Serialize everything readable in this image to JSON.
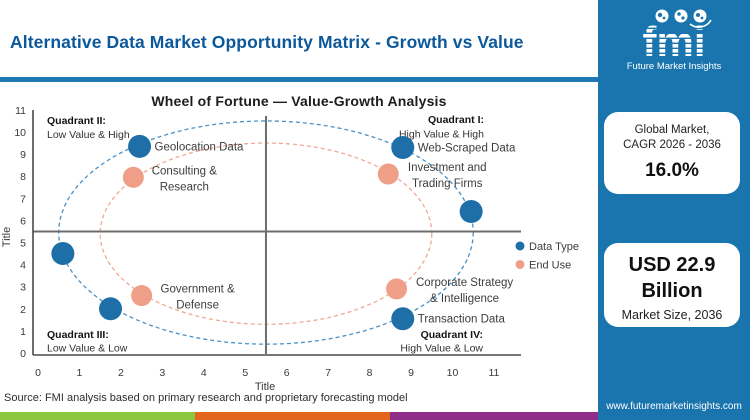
{
  "header": {
    "title": "Alternative Data Market Opportunity Matrix - Growth vs Value"
  },
  "logo": {
    "brand": "fmi",
    "tagline": "Future Market Insights"
  },
  "sidebar": {
    "cagr_card": {
      "line1": "Global Market,",
      "line2": "CAGR 2026 - 2036",
      "value": "16.0%"
    },
    "size_card": {
      "value_line1": "USD 22.9",
      "value_line2": "Billion",
      "label": "Market Size, 2036"
    },
    "website": "www.futuremarketinsights.com"
  },
  "footer": {
    "source": "Source: FMI analysis based on primary research and proprietary forecasting model"
  },
  "colors": {
    "brand_blue": "#1a74ad",
    "title_blue": "#0b599c",
    "rule_blue": "#1e78b3",
    "point_blue": "#1e6fa8",
    "point_salmon": "#ef9e87",
    "stripe_green": "#8cc63f",
    "stripe_orange": "#e4661e",
    "stripe_purple": "#8e2d8a"
  },
  "chart_data": {
    "type": "scatter",
    "title": "Wheel of Fortune — Value-Growth Analysis",
    "xlabel": "Title",
    "ylabel": "Title",
    "xlim": [
      0,
      11
    ],
    "ylim": [
      0,
      11
    ],
    "xticks": [
      0,
      1,
      2,
      3,
      4,
      5,
      6,
      7,
      8,
      9,
      10,
      11
    ],
    "yticks": [
      0,
      1,
      2,
      3,
      4,
      5,
      6,
      7,
      8,
      9,
      10,
      11
    ],
    "grid": false,
    "legend_position": "right",
    "quadrant_divider": {
      "x": 5.5,
      "y": 5.5
    },
    "quadrants": [
      {
        "name": "Quadrant II:",
        "desc": "Low Value & High",
        "corner": "top-left"
      },
      {
        "name": "Quadrant I:",
        "desc": "High Value & High",
        "corner": "top-right"
      },
      {
        "name": "Quadrant III:",
        "desc": "Low Value & Low",
        "corner": "bottom-left"
      },
      {
        "name": "Quadrant IV:",
        "desc": "High Value & Low",
        "corner": "bottom-right"
      }
    ],
    "series": [
      {
        "name": "Data Type",
        "color": "#1e6fa8",
        "ellipse_color": "#4a92c6",
        "marker_radius": 11.5,
        "ellipse": {
          "cx": 5.5,
          "cy": 5.45,
          "rx": 5.0,
          "ry": 5.05
        },
        "points": [
          {
            "x": 2.45,
            "y": 9.35,
            "label": [
              "Geolocation Data"
            ]
          },
          {
            "x": 8.8,
            "y": 9.3,
            "label": [
              "Web-Scraped Data"
            ]
          },
          {
            "x": 10.45,
            "y": 6.4,
            "label": []
          },
          {
            "x": 0.6,
            "y": 4.5,
            "label": []
          },
          {
            "x": 1.75,
            "y": 2.0,
            "label": []
          },
          {
            "x": 8.8,
            "y": 1.55,
            "label": [
              "Transaction Data"
            ]
          }
        ]
      },
      {
        "name": "End Use",
        "color": "#ef9e87",
        "ellipse_color": "#f0a893",
        "marker_radius": 10.5,
        "ellipse": {
          "cx": 5.5,
          "cy": 5.4,
          "rx": 4.0,
          "ry": 4.1
        },
        "points": [
          {
            "x": 2.3,
            "y": 7.95,
            "label": [
              "Consulting &",
              "Research"
            ],
            "label_dx": 51
          },
          {
            "x": 8.45,
            "y": 8.1,
            "label": [
              "Investment and",
              "Trading Firms"
            ],
            "label_dx": 59
          },
          {
            "x": 2.5,
            "y": 2.6,
            "label": [
              "Government &",
              "Defense"
            ],
            "label_dx": 56
          },
          {
            "x": 8.65,
            "y": 2.9,
            "label": [
              "Corporate Strategy",
              "& Intelligence"
            ],
            "label_dx": 68
          }
        ]
      }
    ]
  }
}
